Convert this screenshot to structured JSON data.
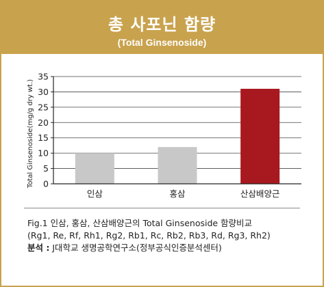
{
  "header": {
    "title": "총 사포닌 함량",
    "subtitle": "(Total Ginsenoside)"
  },
  "colors": {
    "banner": "#c9a24d",
    "bar_gray": "#c8c8c8",
    "bar_red": "#a8181f"
  },
  "chart_data": {
    "type": "bar",
    "categories": [
      "인삼",
      "홍삼",
      "산삼배양근"
    ],
    "values": [
      10,
      12,
      31
    ],
    "bar_colors": [
      "#c8c8c8",
      "#c8c8c8",
      "#a8181f"
    ],
    "ylabel": "Total Ginsenoside(mg/g dry wt.)",
    "xlabel": "",
    "ylim": [
      0,
      35
    ],
    "yticks": [
      0,
      5,
      10,
      15,
      20,
      25,
      30,
      35
    ],
    "grid": true
  },
  "caption": {
    "line1": "Fig.1  인삼, 홍삼, 산삼배양근의 Total Ginsenoside  함량비교",
    "line2": "(Rg1, Re, Rf, Rh1, Rg2, Rb1, Rc, Rb2, Rb3, Rd, Rg3, Rh2)",
    "source_label": "분석 :",
    "source_text": " J대학교 생명공학연구소(정부공식인증분석센터)"
  }
}
